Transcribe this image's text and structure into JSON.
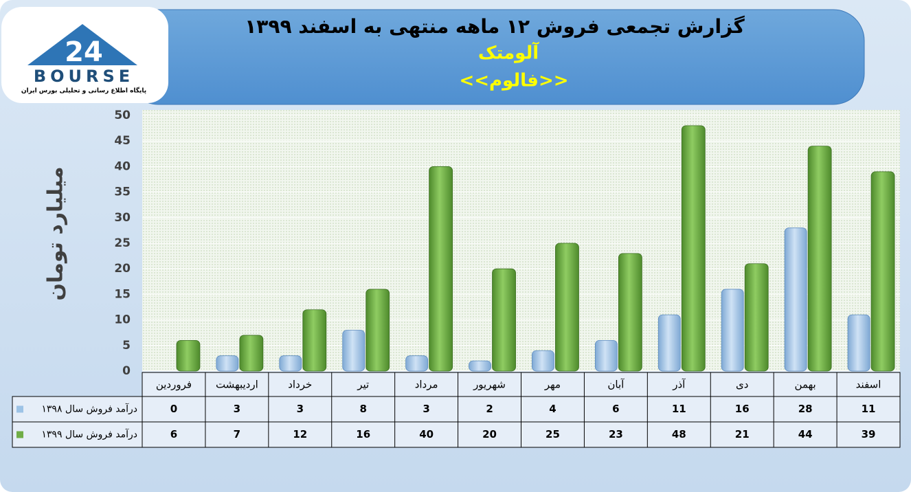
{
  "logo": {
    "mark": "24",
    "name": "BOURSE",
    "tagline": "پایگاه اطلاع رسانی و تحلیلی بورس ایران"
  },
  "chart_data": {
    "type": "bar",
    "title": "گزارش تجمعی فروش ۱۲ ماهه منتهی به اسفند ۱۳۹۹",
    "subtitle": "آلومتک",
    "symbol": "<<فالوم>>",
    "y_label": "میلیارد تومان",
    "categories": [
      "فروردین",
      "اردیبهشت",
      "خرداد",
      "تیر",
      "مرداد",
      "شهریور",
      "مهر",
      "آبان",
      "آذر",
      "دی",
      "بهمن",
      "اسفند"
    ],
    "series": [
      {
        "name": "درآمد فروش سال ۱۳۹۸",
        "color": "#9dc3e6",
        "values": [
          0,
          3,
          3,
          8,
          3,
          2,
          4,
          6,
          11,
          16,
          28,
          11
        ]
      },
      {
        "name": "درآمد فروش سال ۱۳۹۹",
        "color": "#70ad47",
        "values": [
          6,
          7,
          12,
          16,
          40,
          20,
          25,
          23,
          48,
          21,
          44,
          39
        ]
      }
    ],
    "ylim": [
      0,
      50
    ],
    "yticks": [
      0,
      5,
      10,
      15,
      20,
      25,
      30,
      35,
      40,
      45,
      50
    ],
    "grid": true
  }
}
